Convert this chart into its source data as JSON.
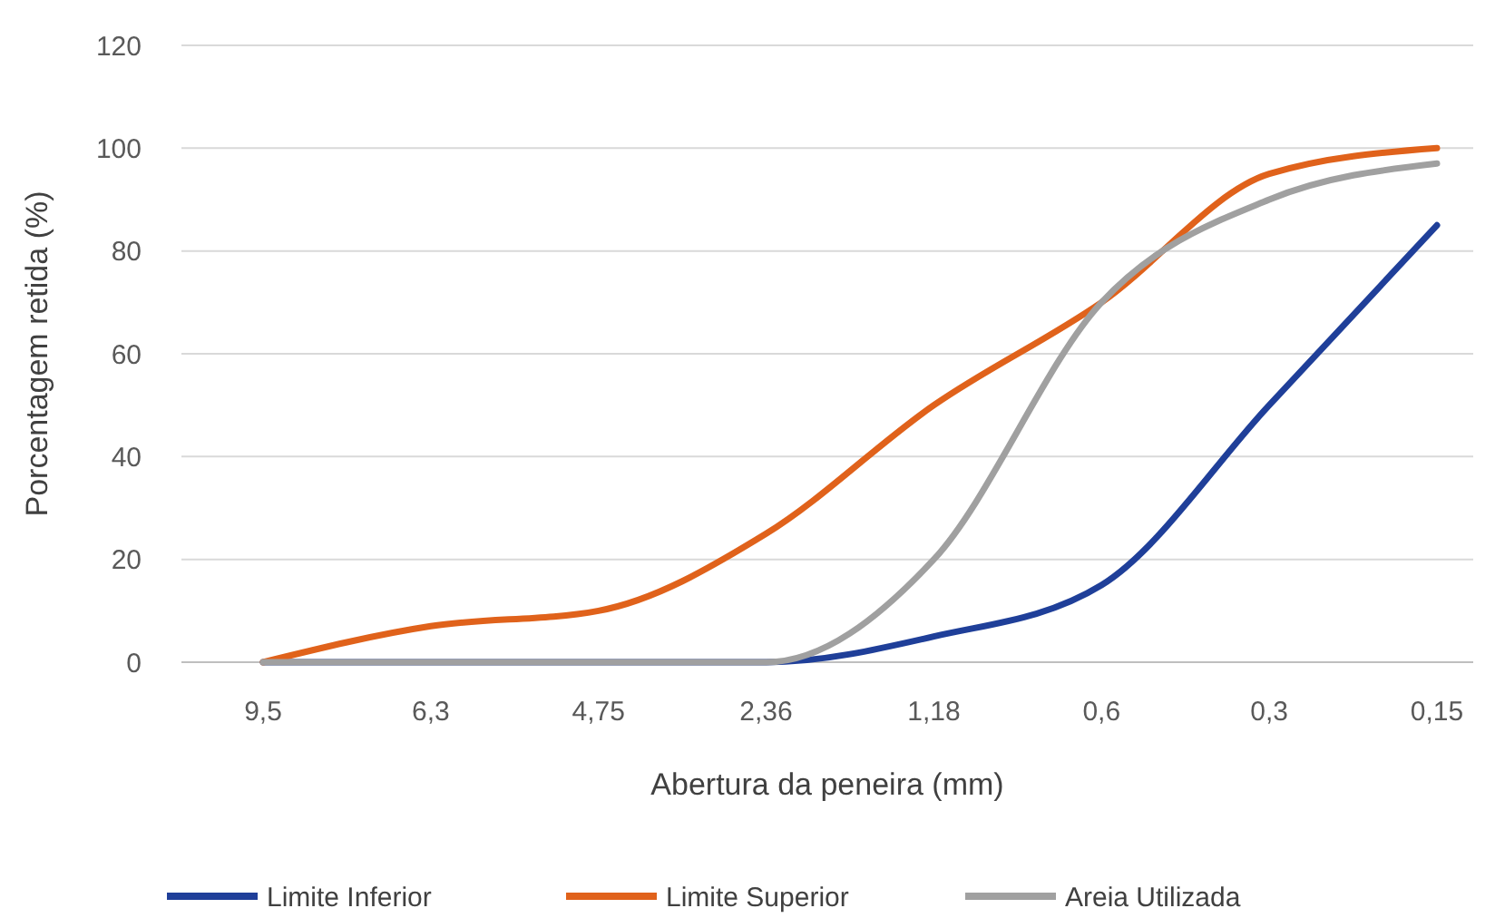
{
  "chart_data": {
    "type": "line",
    "xlabel": "Abertura da peneira (mm)",
    "ylabel": "Porcentagem retida (%)",
    "categories": [
      "9,5",
      "6,3",
      "4,75",
      "2,36",
      "1,18",
      "0,6",
      "0,3",
      "0,15"
    ],
    "series": [
      {
        "name": "Limite Inferior",
        "color": "#1f3f99",
        "values": [
          0,
          0,
          0,
          0,
          5,
          15,
          50,
          85
        ]
      },
      {
        "name": "Limite Superior",
        "color": "#e0621b",
        "values": [
          0,
          7,
          10,
          25,
          50,
          70,
          95,
          100
        ]
      },
      {
        "name": "Areia Utilizada",
        "color": "#a0a0a0",
        "values": [
          0,
          0,
          0,
          0,
          20,
          70,
          90,
          97
        ]
      }
    ],
    "ylim": [
      0,
      120
    ],
    "yticks": [
      0,
      20,
      40,
      60,
      80,
      100,
      120
    ],
    "grid": "y",
    "legend": "bottom",
    "marker": "none",
    "line_style": "solid"
  }
}
